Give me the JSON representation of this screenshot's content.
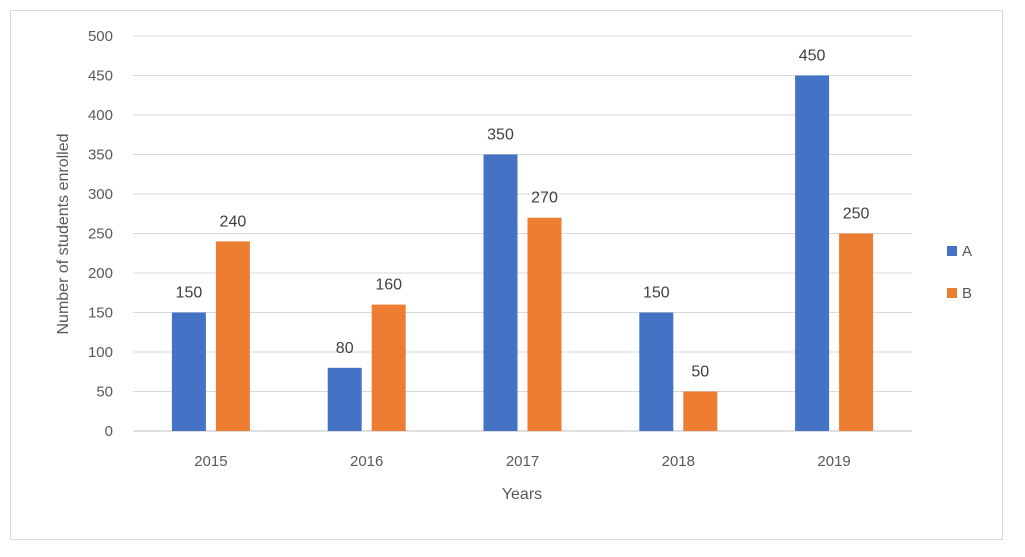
{
  "chart_data": {
    "type": "bar",
    "title": "",
    "xlabel": "Years",
    "ylabel": "Number of students enrolled",
    "categories": [
      "2015",
      "2016",
      "2017",
      "2018",
      "2019"
    ],
    "series": [
      {
        "name": "A",
        "values": [
          150,
          80,
          350,
          150,
          450
        ],
        "color": "#4472c4"
      },
      {
        "name": "B",
        "values": [
          240,
          160,
          270,
          50,
          250
        ],
        "color": "#ed7d31"
      }
    ],
    "ylim": [
      0,
      500
    ],
    "yticks": [
      0,
      50,
      100,
      150,
      200,
      250,
      300,
      350,
      400,
      450,
      500
    ],
    "grid": true,
    "data_labels": true,
    "legend_position": "right"
  }
}
